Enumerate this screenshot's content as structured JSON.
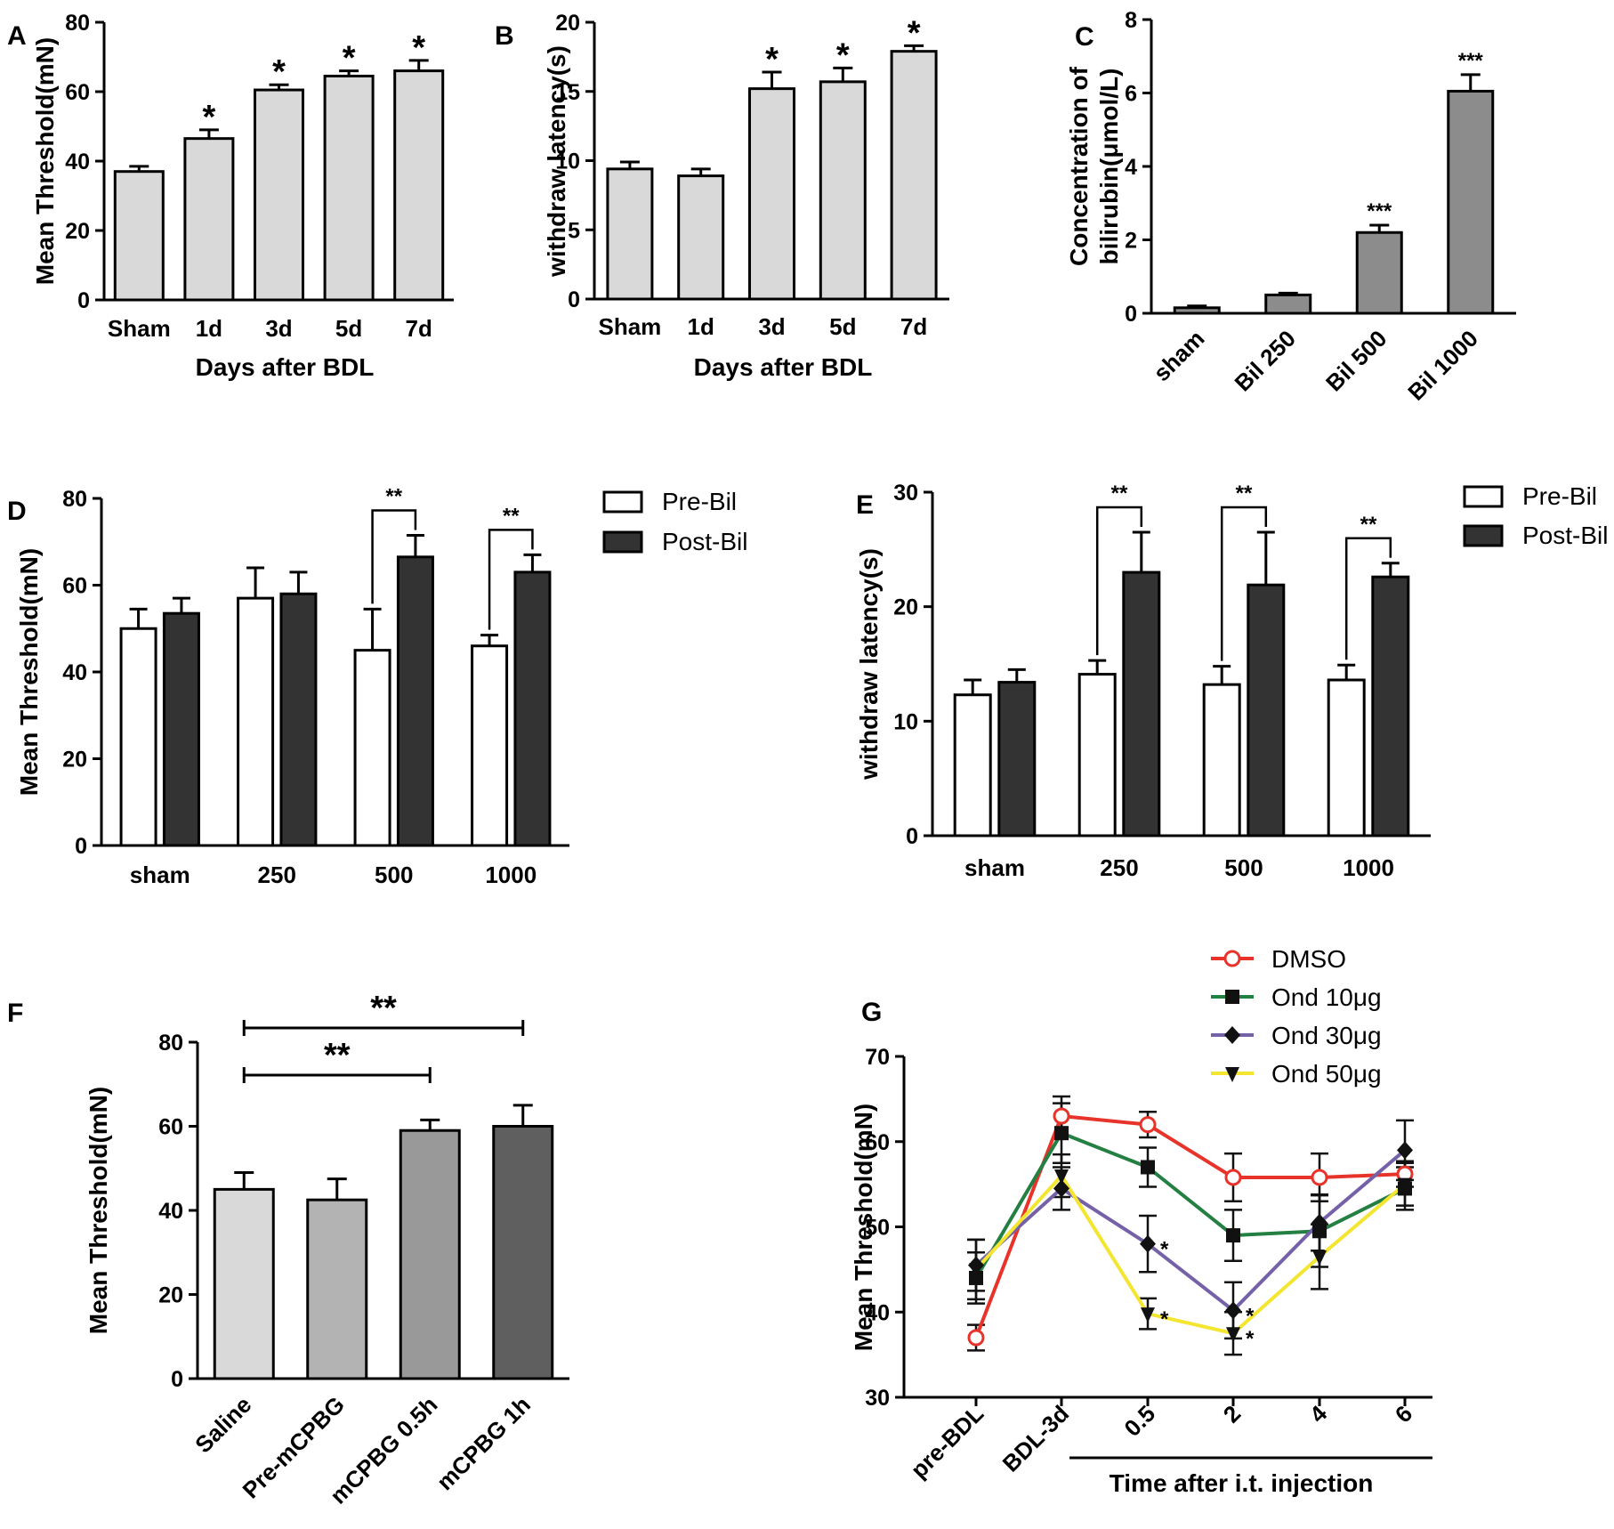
{
  "chart_data": [
    {
      "id": "A",
      "letter": "A",
      "type": "bar",
      "title": "",
      "xlabel": "Days after BDL",
      "ylabel": "Mean Threshold(mN)",
      "ylim": [
        0,
        80
      ],
      "yticks": [
        0,
        20,
        40,
        60,
        80
      ],
      "categories": [
        "Sham",
        "1d",
        "3d",
        "5d",
        "7d"
      ],
      "values": [
        37,
        46.5,
        60.5,
        64.5,
        66
      ],
      "errors": [
        1.5,
        2.5,
        1.5,
        1.5,
        3
      ],
      "annotations": [
        "",
        "*",
        "*",
        "*",
        "*"
      ],
      "bar_color": "#d9d9d9"
    },
    {
      "id": "B",
      "letter": "B",
      "type": "bar",
      "title": "",
      "xlabel": "Days after BDL",
      "ylabel": "withdraw latency(s)",
      "ylim": [
        0,
        20
      ],
      "yticks": [
        0,
        5,
        10,
        15,
        20
      ],
      "categories": [
        "Sham",
        "1d",
        "3d",
        "5d",
        "7d"
      ],
      "values": [
        9.4,
        8.9,
        15.2,
        15.7,
        17.9
      ],
      "errors": [
        0.5,
        0.5,
        1.2,
        1.0,
        0.4
      ],
      "annotations": [
        "",
        "",
        "*",
        "*",
        "*"
      ],
      "bar_color": "#d9d9d9"
    },
    {
      "id": "C",
      "letter": "C",
      "type": "bar",
      "title": "",
      "xlabel": "",
      "ylabel": [
        "Concentration of",
        "bilirubin(μmol/L)"
      ],
      "ylim": [
        0,
        8
      ],
      "yticks": [
        0,
        2,
        4,
        6,
        8
      ],
      "categories": [
        "sham",
        "Bil 250",
        "Bil 500",
        "Bil 1000"
      ],
      "values": [
        0.15,
        0.5,
        2.2,
        6.05
      ],
      "errors": [
        0.05,
        0.05,
        0.2,
        0.45
      ],
      "annotations": [
        "",
        "",
        "***",
        "***"
      ],
      "bar_color": "#8c8c8c"
    },
    {
      "id": "D",
      "letter": "D",
      "type": "bar",
      "title": "",
      "xlabel": "",
      "ylabel": "Mean Threshold(mN)",
      "ylim": [
        0,
        80
      ],
      "yticks": [
        0,
        20,
        40,
        60,
        80
      ],
      "categories": [
        "sham",
        "250",
        "500",
        "1000"
      ],
      "series": [
        {
          "name": "Pre-Bil",
          "values": [
            50,
            57,
            45,
            46
          ],
          "errors": [
            4.5,
            7,
            9.5,
            2.5
          ],
          "color": "#ffffff"
        },
        {
          "name": "Post-Bil",
          "values": [
            53.5,
            58,
            66.5,
            63
          ],
          "errors": [
            3.5,
            5,
            5,
            4
          ],
          "color": "#333333"
        }
      ],
      "comparisons": [
        {
          "category": 2,
          "label": "**"
        },
        {
          "category": 3,
          "label": "**"
        }
      ]
    },
    {
      "id": "E",
      "letter": "E",
      "type": "bar",
      "title": "",
      "xlabel": "",
      "ylabel": "withdraw latency(s)",
      "ylim": [
        0,
        30
      ],
      "yticks": [
        0,
        10,
        20,
        30
      ],
      "categories": [
        "sham",
        "250",
        "500",
        "1000"
      ],
      "series": [
        {
          "name": "Pre-Bil",
          "values": [
            12.3,
            14.1,
            13.2,
            13.6
          ],
          "errors": [
            1.3,
            1.2,
            1.6,
            1.3
          ],
          "color": "#ffffff"
        },
        {
          "name": "Post-Bil",
          "values": [
            13.4,
            23,
            21.9,
            22.6
          ],
          "errors": [
            1.1,
            3.5,
            4.6,
            1.2
          ],
          "color": "#333333"
        }
      ],
      "comparisons": [
        {
          "category": 1,
          "label": "**"
        },
        {
          "category": 2,
          "label": "**"
        },
        {
          "category": 3,
          "label": "**"
        }
      ]
    },
    {
      "id": "F",
      "letter": "F",
      "type": "bar",
      "title": "",
      "xlabel": "",
      "ylabel": "Mean Threshold(mN)",
      "ylim": [
        0,
        80
      ],
      "yticks": [
        0,
        20,
        40,
        60,
        80
      ],
      "categories": [
        "Saline",
        "Pre-mCPBG",
        "mCPBG 0.5h",
        "mCPBG 1h"
      ],
      "values": [
        45,
        42.5,
        59,
        60
      ],
      "errors": [
        4,
        5,
        2.5,
        5
      ],
      "colors": [
        "#d9d9d9",
        "#b3b3b3",
        "#999999",
        "#5f5f5f"
      ],
      "comparisons": [
        {
          "from": 0,
          "to": 2,
          "label": "**"
        },
        {
          "from": 0,
          "to": 3,
          "label": "**"
        }
      ]
    },
    {
      "id": "G",
      "letter": "G",
      "type": "line",
      "title": "",
      "xlabel": "Time after i.t. injection",
      "ylabel": "Mean Threshold(mN)",
      "ylim": [
        30,
        70
      ],
      "yticks": [
        30,
        40,
        50,
        60,
        70
      ],
      "categories": [
        "pre-BDL",
        "BDL-3d",
        "0.5",
        "2",
        "4",
        "6"
      ],
      "series": [
        {
          "name": "DMSO",
          "color": "#e8332a",
          "marker": "circle-open",
          "values": [
            37,
            63,
            62,
            55.8,
            55.8,
            56.2
          ],
          "errors": [
            1.5,
            2.3,
            1.5,
            2.8,
            2.8,
            1.5
          ],
          "stars": [
            "",
            "",
            "",
            "",
            "",
            ""
          ]
        },
        {
          "name": "Ond 10μg",
          "color": "#237f42",
          "marker": "square",
          "values": [
            44,
            61,
            57,
            49,
            49.5,
            54.5
          ],
          "errors": [
            3,
            3.5,
            2.3,
            3,
            4.2,
            2.5
          ],
          "stars": [
            "",
            "",
            "",
            "",
            "",
            ""
          ]
        },
        {
          "name": "Ond 30μg",
          "color": "#7461a8",
          "marker": "diamond",
          "values": [
            45.5,
            54.5,
            48,
            40.2,
            50.5,
            59
          ],
          "errors": [
            3,
            2.5,
            3.3,
            3.3,
            3.3,
            3.5
          ],
          "stars": [
            "",
            "",
            "*",
            "*",
            "",
            ""
          ]
        },
        {
          "name": "Ond 50μg",
          "color": "#f3e530",
          "marker": "triangle-down",
          "values": [
            45,
            56,
            39.8,
            37.5,
            46.5,
            55
          ],
          "errors": [
            3.5,
            2.5,
            1.8,
            2.5,
            3.8,
            2.5
          ],
          "stars": [
            "",
            "",
            "*",
            "*",
            "",
            ""
          ]
        }
      ]
    }
  ]
}
